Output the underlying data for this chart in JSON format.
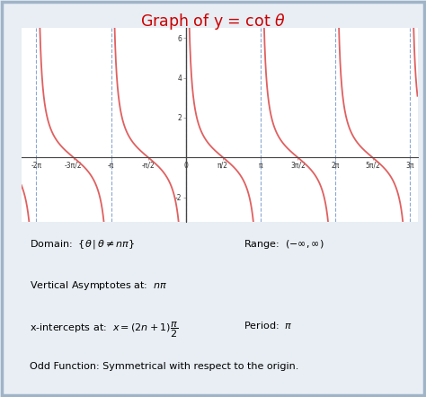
{
  "title_color": "#cc0000",
  "bg_color": "#e8eef4",
  "plot_bg_color": "#ffffff",
  "curve_color": "#e06060",
  "asymptote_color": "#7799cc",
  "axis_color": "#444444",
  "ylim": [
    -3.2,
    6.5
  ],
  "xlim_pi_multiples": [
    -2.2,
    3.1
  ],
  "tick_positions_pi": [
    -2.0,
    -1.5,
    -1.0,
    -0.5,
    0.0,
    0.5,
    1.0,
    1.5,
    2.0,
    2.5,
    3.0
  ],
  "tick_labels": [
    "-2π",
    "-3π/2",
    "-π",
    "-π/2",
    "0",
    "π/2",
    "π",
    "3π/2",
    "2π",
    "5π/2",
    "3π"
  ],
  "ytick_vals": [
    -2,
    2,
    4,
    6
  ],
  "ytick_labels": [
    "-2",
    "2",
    "4",
    "6"
  ],
  "curve_linewidth": 1.3,
  "asymptote_linewidth": 0.8
}
